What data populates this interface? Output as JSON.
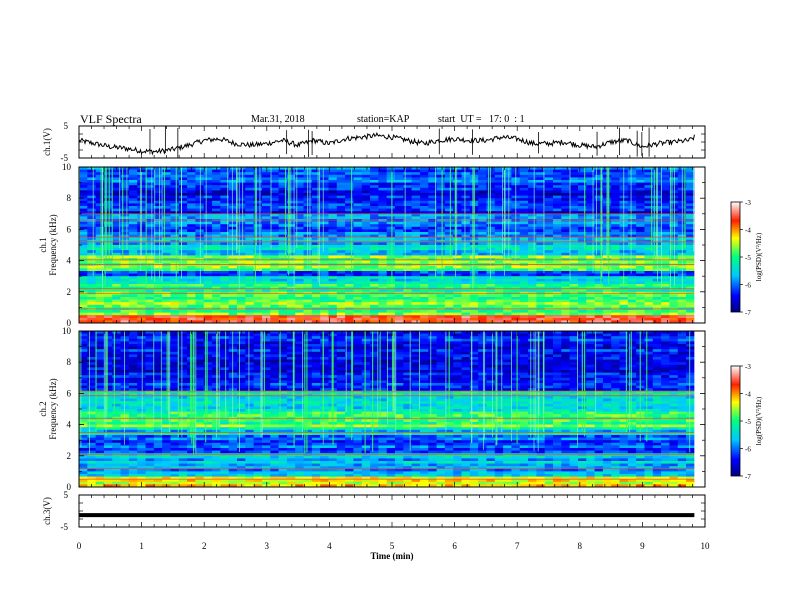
{
  "header": {
    "title": "VLF Spectra",
    "date": "Mar.31, 2018",
    "station": "station=KAP",
    "start_ut": "start  UT =   17: 0  : 1"
  },
  "chart_data": [
    {
      "type": "line",
      "panel": "ch1-waveform",
      "ylabel": "ch.1(V)",
      "ylim": [
        -5,
        5
      ],
      "yticks": [
        {
          "v": 5,
          "label": "5"
        },
        {
          "v": -5,
          "label": "-5"
        }
      ],
      "xlim": [
        0,
        10
      ],
      "x_end": 9.83,
      "series": [
        {
          "x": [
            0,
            0.25,
            0.5,
            0.75,
            1.0,
            1.25,
            1.5,
            1.75,
            2.0,
            2.25,
            2.5,
            2.75,
            3.0,
            3.25,
            3.5,
            3.75,
            4.0,
            4.25,
            4.5,
            4.75,
            5.0,
            5.25,
            5.5,
            5.75,
            6.0,
            6.25,
            6.5,
            6.75,
            7.0,
            7.25,
            7.5,
            7.75,
            8.0,
            8.25,
            8.5,
            8.75,
            9.0,
            9.25,
            9.5,
            9.75,
            9.83
          ],
          "values": [
            0.5,
            -0.5,
            -1.5,
            -2.0,
            -2.8,
            -3.0,
            -2.3,
            -1.0,
            0.5,
            1.0,
            -0.5,
            -1.0,
            -0.5,
            0.5,
            -1.0,
            0.5,
            -0.5,
            1.0,
            1.5,
            2.0,
            1.5,
            0.5,
            -0.5,
            0.5,
            1.0,
            0.5,
            0.5,
            1.5,
            1.0,
            -0.5,
            -0.5,
            0.0,
            -1.0,
            -1.5,
            0.0,
            0.5,
            -1.5,
            -0.5,
            0.0,
            0.5,
            1.5
          ]
        }
      ]
    },
    {
      "type": "heatmap",
      "panel": "ch1-spectrogram",
      "ylabel": [
        "ch.1",
        "Frequency (kHz)"
      ],
      "ylim": [
        0,
        10
      ],
      "yticks": [
        0,
        2,
        4,
        6,
        8,
        10
      ],
      "xlim": [
        0,
        10
      ],
      "x_end": 9.83,
      "colorbar_label": "log(PSD)(V²/Hz)",
      "clim": [
        -7,
        -3
      ],
      "colorbar_ticks": [
        -3,
        -4,
        -5,
        -6,
        -7
      ],
      "bands": [
        {
          "f0": 0.0,
          "f1": 0.5,
          "v": -3.6
        },
        {
          "f0": 0.5,
          "f1": 1.5,
          "v": -4.8
        },
        {
          "f0": 1.5,
          "f1": 2.5,
          "v": -4.9
        },
        {
          "f0": 2.5,
          "f1": 3.0,
          "v": -5.4
        },
        {
          "f0": 3.0,
          "f1": 3.4,
          "v": -6.3
        },
        {
          "f0": 3.4,
          "f1": 4.4,
          "v": -4.7
        },
        {
          "f0": 4.4,
          "f1": 5.0,
          "v": -5.5
        },
        {
          "f0": 5.0,
          "f1": 5.6,
          "v": -5.9
        },
        {
          "f0": 5.6,
          "f1": 6.3,
          "v": -6.1
        },
        {
          "f0": 6.3,
          "f1": 7.0,
          "v": -5.8
        },
        {
          "f0": 7.0,
          "f1": 9.0,
          "v": -6.4
        },
        {
          "f0": 9.0,
          "f1": 10.0,
          "v": -6.0
        }
      ],
      "lines": [
        0.45,
        0.9,
        1.9,
        2.2,
        3.75,
        4.05,
        5.2,
        5.5,
        6.6,
        7.0
      ]
    },
    {
      "type": "heatmap",
      "panel": "ch2-spectrogram",
      "ylabel": [
        "ch.2",
        "Frequency (kHz)"
      ],
      "ylim": [
        0,
        10
      ],
      "yticks": [
        0,
        2,
        4,
        6,
        8,
        10
      ],
      "xlim": [
        0,
        10
      ],
      "x_end": 9.83,
      "colorbar_label": "log(PSD)(V²/Hz)",
      "clim": [
        -7,
        -3
      ],
      "colorbar_ticks": [
        -3,
        -4,
        -5,
        -6,
        -7
      ],
      "bands": [
        {
          "f0": 0.0,
          "f1": 0.6,
          "v": -4.3
        },
        {
          "f0": 0.6,
          "f1": 1.5,
          "v": -5.7
        },
        {
          "f0": 1.5,
          "f1": 2.1,
          "v": -5.6
        },
        {
          "f0": 2.1,
          "f1": 3.4,
          "v": -6.1
        },
        {
          "f0": 3.4,
          "f1": 3.8,
          "v": -5.5
        },
        {
          "f0": 3.8,
          "f1": 4.9,
          "v": -4.8
        },
        {
          "f0": 4.9,
          "f1": 5.8,
          "v": -5.6
        },
        {
          "f0": 5.8,
          "f1": 6.2,
          "v": -5.3
        },
        {
          "f0": 6.2,
          "f1": 7.0,
          "v": -6.3
        },
        {
          "f0": 7.0,
          "f1": 10.0,
          "v": -6.4
        }
      ],
      "lines": [
        0.5,
        1.2,
        2.1,
        3.5,
        4.4,
        5.85,
        6.1
      ]
    },
    {
      "type": "line",
      "panel": "ch3-waveform",
      "ylabel": "ch.3(V)",
      "ylim": [
        -5,
        5
      ],
      "yticks": [
        {
          "v": 5,
          "label": "5"
        },
        {
          "v": -5,
          "label": "-5"
        }
      ],
      "xlim": [
        0,
        10
      ],
      "x_end": 9.83,
      "series": [
        {
          "x": [
            0,
            9.83
          ],
          "values": [
            -1.3,
            -1.3
          ]
        }
      ]
    }
  ],
  "xaxis": {
    "label": "Time (min)",
    "ticks": [
      "0",
      "1",
      "2",
      "3",
      "4",
      "5",
      "6",
      "7",
      "8",
      "9",
      "10"
    ]
  },
  "colors": {
    "axis": "#000000",
    "trace": "#000000"
  }
}
